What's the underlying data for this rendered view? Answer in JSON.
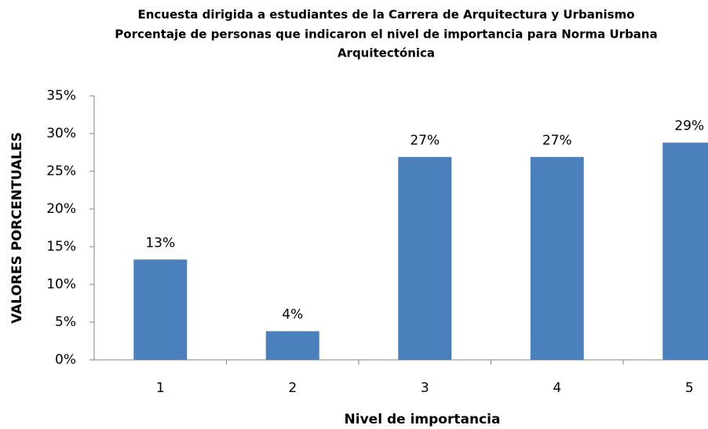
{
  "chart_data": {
    "type": "bar",
    "title": [
      "Encuesta dirigida a estudiantes de la Carrera de Arquitectura y Urbanismo",
      "Porcentaje de personas que indicaron el nivel de importancia para Norma Urbana",
      "Arquitectónica"
    ],
    "x_label": "Nivel de importancia",
    "y_label": "VALORES PORCENTUALES",
    "categories": [
      "1",
      "2",
      "3",
      "4",
      "5"
    ],
    "values": [
      13.3,
      3.8,
      26.9,
      26.9,
      28.8
    ],
    "value_labels": [
      "13%",
      "4%",
      "27%",
      "27%",
      "29%"
    ],
    "color": "#4a81bd",
    "ylim": [
      0,
      35
    ],
    "yticks": [
      {
        "value": 0,
        "label": "0%"
      },
      {
        "value": 5,
        "label": "5%"
      },
      {
        "value": 10,
        "label": "10%"
      },
      {
        "value": 15,
        "label": "15%"
      },
      {
        "value": 20,
        "label": "20%"
      },
      {
        "value": 25,
        "label": "25%"
      },
      {
        "value": 30,
        "label": "30%"
      },
      {
        "value": 35,
        "label": "35%"
      }
    ],
    "grid": false
  }
}
